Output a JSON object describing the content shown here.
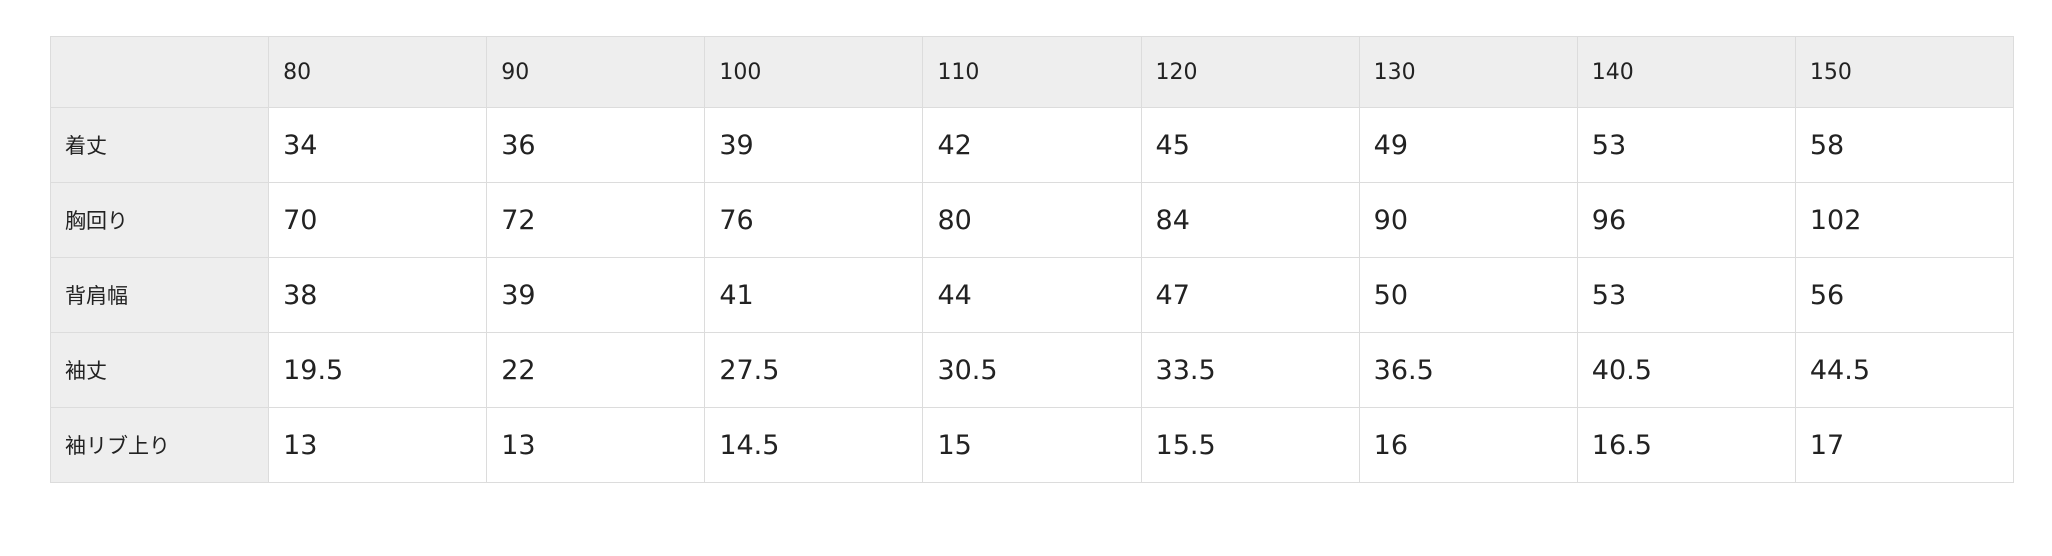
{
  "size_table": {
    "corner": "",
    "columns": [
      "80",
      "90",
      "100",
      "110",
      "120",
      "130",
      "140",
      "150"
    ],
    "rows": [
      {
        "label": "着丈",
        "values": [
          "34",
          "36",
          "39",
          "42",
          "45",
          "49",
          "53",
          "58"
        ]
      },
      {
        "label": "胸回り",
        "values": [
          "70",
          "72",
          "76",
          "80",
          "84",
          "90",
          "96",
          "102"
        ]
      },
      {
        "label": "背肩幅",
        "values": [
          "38",
          "39",
          "41",
          "44",
          "47",
          "50",
          "53",
          "56"
        ]
      },
      {
        "label": "袖丈",
        "values": [
          "19.5",
          "22",
          "27.5",
          "30.5",
          "33.5",
          "36.5",
          "40.5",
          "44.5"
        ]
      },
      {
        "label": "袖リブ上り",
        "values": [
          "13",
          "13",
          "14.5",
          "15",
          "15.5",
          "16",
          "16.5",
          "17"
        ]
      }
    ]
  }
}
